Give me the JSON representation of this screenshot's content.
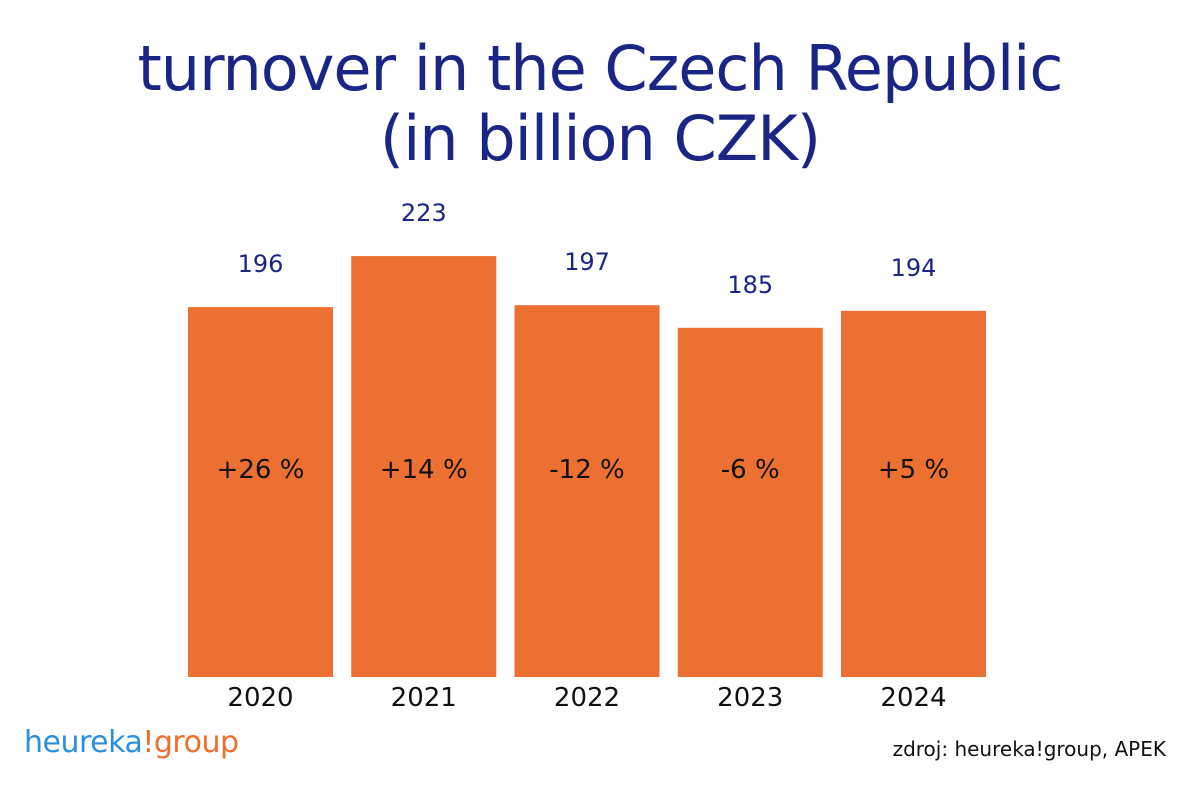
{
  "chart_data": {
    "type": "bar",
    "title": [
      "turnover in the Czech Republic",
      "(in billion CZK)"
    ],
    "categories": [
      "2020",
      "2021",
      "2022",
      "2023",
      "2024"
    ],
    "values": [
      196,
      223,
      197,
      185,
      194
    ],
    "value_labels": [
      "196",
      "223",
      "197",
      "185",
      "194"
    ],
    "change_labels": [
      "+26 %",
      "+14 %",
      "-12 %",
      "-6 %",
      "+5 %"
    ],
    "xlabel": "",
    "ylabel": "",
    "grid": false,
    "legend": "none"
  },
  "brand": {
    "part1": "heureka",
    "part2": "!group"
  },
  "source": "zdroj: heureka!group, APEK",
  "colors": {
    "bar": "#ec7032",
    "title": "#1a2585",
    "value_label": "#1a2585",
    "change_label": "#111111",
    "year_label": "#111111",
    "brand_primary": "#2d8fe0",
    "brand_accent": "#ee6e2d"
  }
}
